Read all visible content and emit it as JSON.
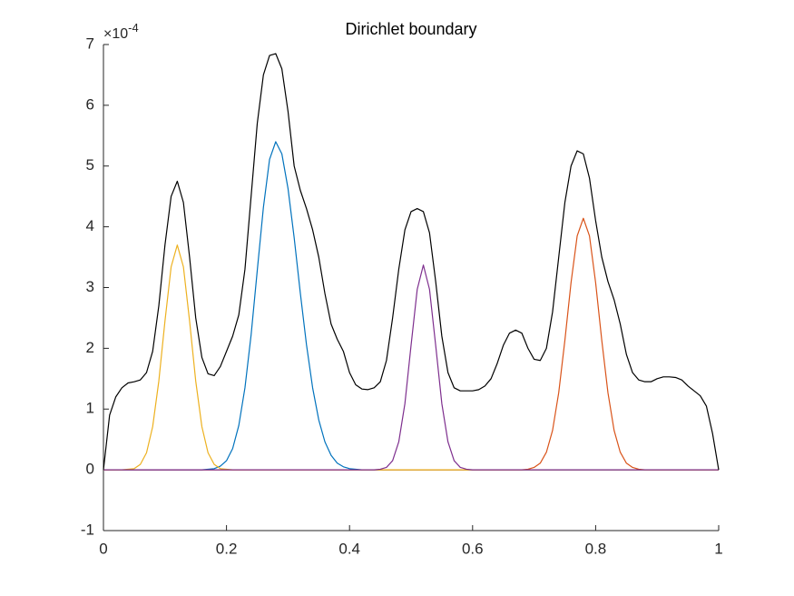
{
  "chart_data": {
    "type": "line",
    "title": "Dirichlet boundary",
    "y_exponent": {
      "base": "×10",
      "power": "-4"
    },
    "xlim": [
      0,
      1
    ],
    "xticks": [
      0,
      0.2,
      0.4,
      0.6,
      0.8,
      1
    ],
    "ylim": [
      -1,
      7
    ],
    "yticks": [
      -1,
      0,
      1,
      2,
      3,
      4,
      5,
      6,
      7
    ],
    "x": [
      0,
      0.01,
      0.02,
      0.03,
      0.04,
      0.05,
      0.06,
      0.07,
      0.08,
      0.09,
      0.1,
      0.11,
      0.12,
      0.13,
      0.14,
      0.15,
      0.16,
      0.17,
      0.18,
      0.19,
      0.2,
      0.21,
      0.22,
      0.23,
      0.24,
      0.25,
      0.26,
      0.27,
      0.28,
      0.29,
      0.3,
      0.31,
      0.32,
      0.33,
      0.34,
      0.35,
      0.36,
      0.37,
      0.38,
      0.39,
      0.4,
      0.41,
      0.42,
      0.43,
      0.44,
      0.45,
      0.46,
      0.47,
      0.48,
      0.49,
      0.5,
      0.51,
      0.52,
      0.53,
      0.54,
      0.55,
      0.56,
      0.57,
      0.58,
      0.59,
      0.6,
      0.61,
      0.62,
      0.63,
      0.64,
      0.65,
      0.66,
      0.67,
      0.68,
      0.69,
      0.7,
      0.71,
      0.72,
      0.73,
      0.74,
      0.75,
      0.76,
      0.77,
      0.78,
      0.79,
      0.8,
      0.81,
      0.82,
      0.83,
      0.84,
      0.85,
      0.86,
      0.87,
      0.88,
      0.89,
      0.9,
      0.91,
      0.92,
      0.93,
      0.94,
      0.95,
      0.96,
      0.97,
      0.98,
      0.99,
      1
    ],
    "series": [
      {
        "color": "#0072bd",
        "values": [
          0,
          0,
          0,
          0,
          0,
          0,
          0,
          0,
          0,
          0,
          0,
          0,
          0,
          0,
          0,
          0,
          0,
          0.01,
          0.02,
          0.06,
          0.15,
          0.35,
          0.73,
          1.35,
          2.22,
          3.28,
          4.32,
          5.11,
          5.4,
          5.2,
          4.63,
          3.82,
          2.91,
          2.06,
          1.35,
          0.82,
          0.46,
          0.24,
          0.11,
          0.05,
          0.02,
          0.01,
          0,
          0,
          0,
          0,
          0,
          0,
          0,
          0,
          0,
          0,
          0,
          0,
          0,
          0,
          0,
          0,
          0,
          0,
          0,
          0,
          0,
          0,
          0,
          0,
          0,
          0,
          0,
          0,
          0,
          0,
          0,
          0,
          0,
          0,
          0,
          0,
          0,
          0,
          0,
          0,
          0,
          0,
          0,
          0,
          0,
          0,
          0,
          0,
          0,
          0,
          0,
          0,
          0,
          0,
          0,
          0,
          0,
          0,
          0
        ]
      },
      {
        "color": "#d95319",
        "values": [
          0,
          0,
          0,
          0,
          0,
          0,
          0,
          0,
          0,
          0,
          0,
          0,
          0,
          0,
          0,
          0,
          0,
          0,
          0,
          0,
          0,
          0,
          0,
          0,
          0,
          0,
          0,
          0,
          0,
          0,
          0,
          0,
          0,
          0,
          0,
          0,
          0,
          0,
          0,
          0,
          0,
          0,
          0,
          0,
          0,
          0,
          0,
          0,
          0,
          0,
          0,
          0,
          0,
          0,
          0,
          0,
          0,
          0,
          0,
          0,
          0,
          0,
          0,
          0,
          0,
          0,
          0,
          0,
          0,
          0.01,
          0.04,
          0.11,
          0.29,
          0.65,
          1.27,
          2.13,
          3.08,
          3.85,
          4.14,
          3.85,
          3.08,
          2.13,
          1.27,
          0.65,
          0.29,
          0.11,
          0.04,
          0.01,
          0,
          0,
          0,
          0,
          0,
          0,
          0,
          0,
          0,
          0,
          0,
          0,
          0
        ]
      },
      {
        "color": "#edb120",
        "values": [
          0,
          0,
          0,
          0,
          0.01,
          0.02,
          0.09,
          0.28,
          0.71,
          1.46,
          2.45,
          3.34,
          3.7,
          3.34,
          2.45,
          1.46,
          0.71,
          0.28,
          0.09,
          0.02,
          0.01,
          0,
          0,
          0,
          0,
          0,
          0,
          0,
          0,
          0,
          0,
          0,
          0,
          0,
          0,
          0,
          0,
          0,
          0,
          0,
          0,
          0,
          0,
          0,
          0,
          0,
          0,
          0,
          0,
          0,
          0,
          0,
          0,
          0,
          0,
          0,
          0,
          0,
          0,
          0,
          0,
          0,
          0,
          0,
          0,
          0,
          0,
          0,
          0,
          0,
          0,
          0,
          0,
          0,
          0,
          0,
          0,
          0,
          0,
          0,
          0,
          0,
          0,
          0,
          0,
          0,
          0,
          0,
          0,
          0,
          0,
          0,
          0,
          0,
          0,
          0,
          0,
          0,
          0,
          0,
          0
        ]
      },
      {
        "color": "#7e2f8e",
        "values": [
          0,
          0,
          0,
          0,
          0,
          0,
          0,
          0,
          0,
          0,
          0,
          0,
          0,
          0,
          0,
          0,
          0,
          0,
          0,
          0,
          0,
          0,
          0,
          0,
          0,
          0,
          0,
          0,
          0,
          0,
          0,
          0,
          0,
          0,
          0,
          0,
          0,
          0,
          0,
          0,
          0,
          0,
          0,
          0,
          0,
          0.01,
          0.04,
          0.15,
          0.46,
          1.09,
          2.05,
          2.97,
          3.37,
          2.97,
          2.05,
          1.09,
          0.46,
          0.15,
          0.04,
          0.01,
          0,
          0,
          0,
          0,
          0,
          0,
          0,
          0,
          0,
          0,
          0,
          0,
          0,
          0,
          0,
          0,
          0,
          0,
          0,
          0,
          0,
          0,
          0,
          0,
          0,
          0,
          0,
          0,
          0,
          0,
          0,
          0,
          0,
          0,
          0,
          0,
          0,
          0,
          0,
          0,
          0
        ]
      },
      {
        "color": "#000000",
        "values": [
          0,
          0.9,
          1.2,
          1.35,
          1.43,
          1.45,
          1.48,
          1.6,
          1.95,
          2.7,
          3.7,
          4.5,
          4.75,
          4.4,
          3.5,
          2.5,
          1.85,
          1.58,
          1.55,
          1.7,
          1.95,
          2.2,
          2.55,
          3.3,
          4.5,
          5.7,
          6.5,
          6.82,
          6.85,
          6.6,
          5.9,
          5.0,
          4.6,
          4.3,
          3.95,
          3.5,
          2.9,
          2.4,
          2.15,
          1.95,
          1.6,
          1.4,
          1.33,
          1.32,
          1.35,
          1.45,
          1.8,
          2.5,
          3.3,
          3.95,
          4.25,
          4.3,
          4.25,
          3.9,
          3.1,
          2.2,
          1.6,
          1.35,
          1.3,
          1.3,
          1.3,
          1.32,
          1.38,
          1.5,
          1.75,
          2.05,
          2.25,
          2.3,
          2.25,
          2.0,
          1.82,
          1.8,
          2.0,
          2.6,
          3.5,
          4.4,
          5.0,
          5.25,
          5.2,
          4.8,
          4.1,
          3.5,
          3.1,
          2.8,
          2.4,
          1.9,
          1.6,
          1.48,
          1.45,
          1.45,
          1.5,
          1.53,
          1.53,
          1.52,
          1.48,
          1.38,
          1.3,
          1.22,
          1.05,
          0.6,
          0
        ]
      }
    ]
  }
}
